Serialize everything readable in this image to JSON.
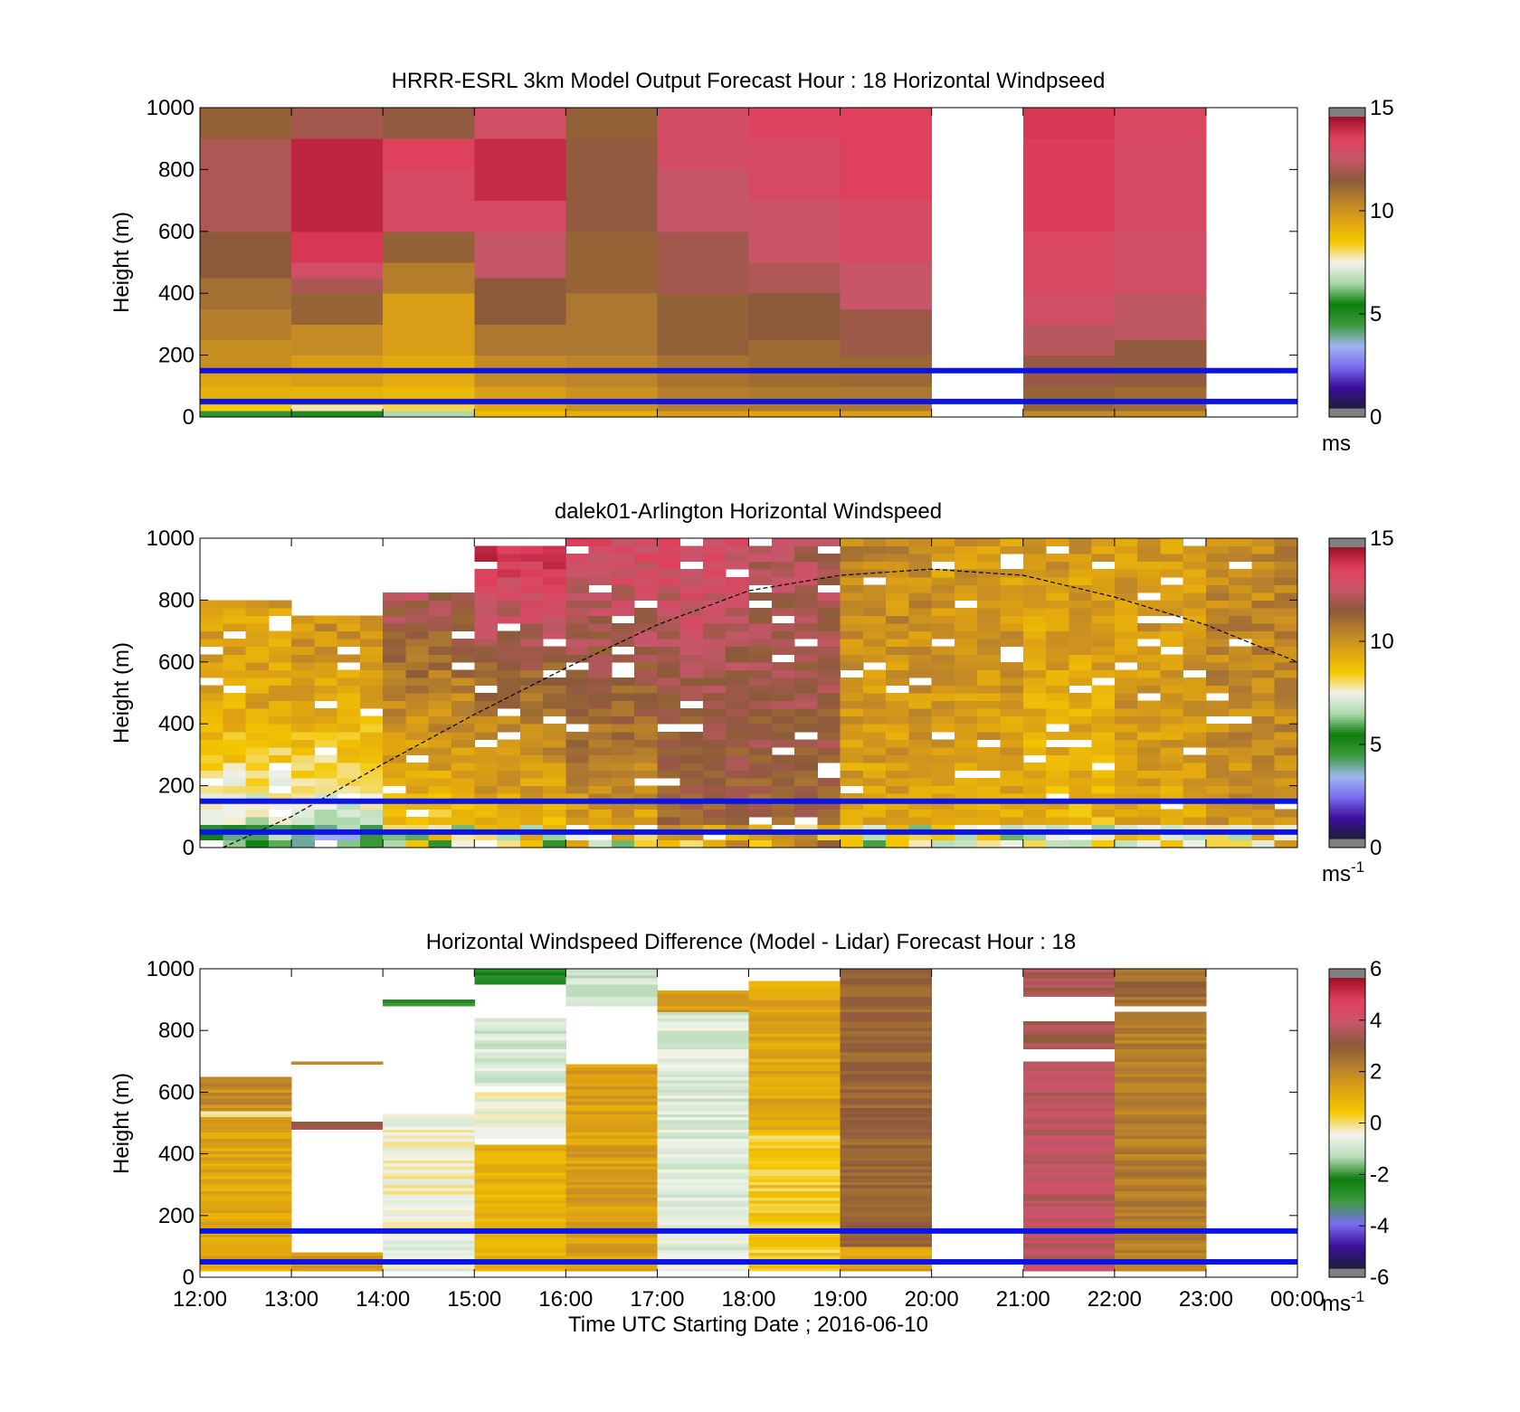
{
  "colors": {
    "speed_scale": [
      "#1f1d3a",
      "#3b0f9a",
      "#7a6cf0",
      "#9fb6ee",
      "#3d9a3d",
      "#0c7d0c",
      "#a8d8a8",
      "#f2f2ec",
      "#f5c800",
      "#e0a312",
      "#b8812c",
      "#8b5a3a",
      "#c8566a",
      "#e0405c",
      "#a01028"
    ],
    "diff_scale": [
      "#1f1d3a",
      "#3b0f9a",
      "#7a6cf0",
      "#3d9a3d",
      "#0c7d0c",
      "#b8dcb8",
      "#f4f4ee",
      "#f5c800",
      "#e0a312",
      "#b8812c",
      "#8b5a3a",
      "#c8566a",
      "#e0405c",
      "#a01028"
    ],
    "blue_line": "#0a14e6",
    "sun_curve": "#000000",
    "nodata": "#ffffff",
    "colorbar_end": "#808080"
  },
  "chart_data": [
    {
      "type": "heatmap",
      "title": "HRRR-ESRL 3km Model Output   Forecast Hour : 18 Horizontal Windpseed",
      "xlabel": "",
      "ylabel": "Height (m)",
      "xlim": [
        12,
        24
      ],
      "ylim": [
        0,
        1000
      ],
      "yticks": [
        0,
        200,
        400,
        600,
        800,
        1000
      ],
      "colorbar": {
        "min": 0,
        "max": 15,
        "ticks": [
          0,
          5,
          10,
          15
        ],
        "unit": "ms",
        "unit_sup": ""
      },
      "reference_heights_m": [
        50,
        150
      ],
      "missing_hours": [
        20,
        23
      ],
      "columns": [
        {
          "start_hour": 12,
          "levels": [
            {
              "top": 20,
              "v": 4.5
            },
            {
              "top": 40,
              "v": 8.5
            },
            {
              "top": 100,
              "v": 9.3
            },
            {
              "top": 150,
              "v": 9.6
            },
            {
              "top": 250,
              "v": 10.3
            },
            {
              "top": 350,
              "v": 10.8
            },
            {
              "top": 450,
              "v": 11.2
            },
            {
              "top": 600,
              "v": 11.8
            },
            {
              "top": 900,
              "v": 12.4
            },
            {
              "top": 1000,
              "v": 11.6
            }
          ]
        },
        {
          "start_hour": 13,
          "levels": [
            {
              "top": 20,
              "v": 5.5
            },
            {
              "top": 40,
              "v": 7.8
            },
            {
              "top": 100,
              "v": 9.2
            },
            {
              "top": 200,
              "v": 9.8
            },
            {
              "top": 300,
              "v": 10.4
            },
            {
              "top": 400,
              "v": 11.5
            },
            {
              "top": 450,
              "v": 12.3
            },
            {
              "top": 500,
              "v": 13.2
            },
            {
              "top": 600,
              "v": 14.1
            },
            {
              "top": 900,
              "v": 14.5
            },
            {
              "top": 1000,
              "v": 12.2
            }
          ]
        },
        {
          "start_hour": 14,
          "levels": [
            {
              "top": 20,
              "v": 6.5
            },
            {
              "top": 40,
              "v": 8.2
            },
            {
              "top": 100,
              "v": 9.0
            },
            {
              "top": 200,
              "v": 9.4
            },
            {
              "top": 400,
              "v": 9.8
            },
            {
              "top": 500,
              "v": 10.8
            },
            {
              "top": 600,
              "v": 11.6
            },
            {
              "top": 800,
              "v": 13.5
            },
            {
              "top": 900,
              "v": 13.9
            },
            {
              "top": 1000,
              "v": 11.9
            }
          ]
        },
        {
          "start_hour": 15,
          "levels": [
            {
              "top": 20,
              "v": 9.0
            },
            {
              "top": 40,
              "v": 9.4
            },
            {
              "top": 100,
              "v": 9.8
            },
            {
              "top": 200,
              "v": 10.4
            },
            {
              "top": 300,
              "v": 11.0
            },
            {
              "top": 450,
              "v": 11.8
            },
            {
              "top": 600,
              "v": 12.8
            },
            {
              "top": 700,
              "v": 13.5
            },
            {
              "top": 900,
              "v": 14.4
            },
            {
              "top": 1000,
              "v": 13.2
            }
          ]
        },
        {
          "start_hour": 16,
          "levels": [
            {
              "top": 20,
              "v": 9.3
            },
            {
              "top": 100,
              "v": 10.2
            },
            {
              "top": 200,
              "v": 10.6
            },
            {
              "top": 400,
              "v": 11.0
            },
            {
              "top": 600,
              "v": 11.5
            },
            {
              "top": 900,
              "v": 11.9
            },
            {
              "top": 1000,
              "v": 11.6
            }
          ]
        },
        {
          "start_hour": 17,
          "levels": [
            {
              "top": 20,
              "v": 9.8
            },
            {
              "top": 100,
              "v": 10.8
            },
            {
              "top": 200,
              "v": 11.1
            },
            {
              "top": 400,
              "v": 11.6
            },
            {
              "top": 600,
              "v": 12.2
            },
            {
              "top": 800,
              "v": 12.8
            },
            {
              "top": 1000,
              "v": 13.3
            }
          ]
        },
        {
          "start_hour": 18,
          "levels": [
            {
              "top": 20,
              "v": 9.6
            },
            {
              "top": 100,
              "v": 10.9
            },
            {
              "top": 250,
              "v": 11.3
            },
            {
              "top": 400,
              "v": 11.8
            },
            {
              "top": 500,
              "v": 12.4
            },
            {
              "top": 700,
              "v": 13.0
            },
            {
              "top": 900,
              "v": 13.5
            },
            {
              "top": 1000,
              "v": 13.8
            }
          ]
        },
        {
          "start_hour": 19,
          "levels": [
            {
              "top": 20,
              "v": 9.8
            },
            {
              "top": 100,
              "v": 11.0
            },
            {
              "top": 200,
              "v": 11.4
            },
            {
              "top": 350,
              "v": 12.1
            },
            {
              "top": 500,
              "v": 12.9
            },
            {
              "top": 700,
              "v": 13.4
            },
            {
              "top": 1000,
              "v": 13.9
            }
          ]
        },
        {
          "start_hour": 21,
          "levels": [
            {
              "top": 20,
              "v": 10.5
            },
            {
              "top": 100,
              "v": 11.5
            },
            {
              "top": 200,
              "v": 12.0
            },
            {
              "top": 300,
              "v": 12.6
            },
            {
              "top": 400,
              "v": 13.2
            },
            {
              "top": 600,
              "v": 13.6
            },
            {
              "top": 900,
              "v": 14.0
            },
            {
              "top": 1000,
              "v": 14.1
            }
          ]
        },
        {
          "start_hour": 22,
          "levels": [
            {
              "top": 20,
              "v": 10.3
            },
            {
              "top": 100,
              "v": 11.3
            },
            {
              "top": 250,
              "v": 11.9
            },
            {
              "top": 400,
              "v": 12.7
            },
            {
              "top": 600,
              "v": 13.2
            },
            {
              "top": 900,
              "v": 13.5
            },
            {
              "top": 1000,
              "v": 13.6
            }
          ]
        }
      ]
    },
    {
      "type": "heatmap",
      "title": "dalek01-Arlington  Horizontal Windspeed",
      "xlabel": "",
      "ylabel": "Height (m)",
      "xlim": [
        12,
        24
      ],
      "ylim": [
        0,
        1000
      ],
      "yticks": [
        0,
        200,
        400,
        600,
        800,
        1000
      ],
      "colorbar": {
        "min": 0,
        "max": 15,
        "ticks": [
          0,
          5,
          10,
          15
        ],
        "unit": "ms",
        "unit_sup": "-1"
      },
      "reference_heights_m": [
        50,
        150
      ],
      "profile_interval_min": 15,
      "gate_m": 25,
      "hourly_profiles": [
        {
          "hour": 12,
          "top_m": 780,
          "lower": 6.5,
          "mid": 9.5,
          "upper": 10.0
        },
        {
          "hour": 13,
          "top_m": 740,
          "lower": 6.5,
          "mid": 9.5,
          "upper": 11.0
        },
        {
          "hour": 14,
          "top_m": 820,
          "lower": 8.5,
          "mid": 10.5,
          "upper": 13.5
        },
        {
          "hour": 15,
          "top_m": 960,
          "lower": 9.0,
          "mid": 11.0,
          "upper": 14.5
        },
        {
          "hour": 16,
          "top_m": 1000,
          "lower": 9.5,
          "mid": 11.5,
          "upper": 13.5
        },
        {
          "hour": 17,
          "top_m": 1000,
          "lower": 11.5,
          "mid": 12.0,
          "upper": 13.5
        },
        {
          "hour": 18,
          "top_m": 1000,
          "lower": 11.5,
          "mid": 12.0,
          "upper": 12.5
        },
        {
          "hour": 19,
          "top_m": 1000,
          "lower": 9.5,
          "mid": 10.0,
          "upper": 10.5
        },
        {
          "hour": 20,
          "top_m": 1000,
          "lower": 9.5,
          "mid": 10.0,
          "upper": 10.0
        },
        {
          "hour": 21,
          "top_m": 1000,
          "lower": 9.0,
          "mid": 9.5,
          "upper": 10.0
        },
        {
          "hour": 22,
          "top_m": 1000,
          "lower": 9.5,
          "mid": 10.0,
          "upper": 10.0
        },
        {
          "hour": 23,
          "top_m": 1000,
          "lower": 10.0,
          "mid": 10.5,
          "upper": 10.5
        }
      ],
      "sun_curve": {
        "x": [
          12.25,
          13,
          14,
          15,
          16,
          17,
          18,
          19,
          20,
          21,
          22,
          23,
          24
        ],
        "y": [
          0,
          100,
          270,
          430,
          580,
          720,
          830,
          880,
          900,
          880,
          810,
          720,
          600
        ]
      }
    },
    {
      "type": "heatmap",
      "title": "Horizontal Windspeed Difference (Model - Lidar) Forecast Hour : 18",
      "xlabel": "Time UTC  Starting Date ; 2016-06-10",
      "ylabel": "Height (m)",
      "xlim": [
        12,
        24
      ],
      "ylim": [
        0,
        1000
      ],
      "yticks": [
        0,
        200,
        400,
        600,
        800,
        1000
      ],
      "xticks": [
        "12:00",
        "13:00",
        "14:00",
        "15:00",
        "16:00",
        "17:00",
        "18:00",
        "19:00",
        "20:00",
        "21:00",
        "22:00",
        "23:00",
        "00:00"
      ],
      "colorbar": {
        "min": -6,
        "max": 6,
        "ticks": [
          -6,
          -4,
          -2,
          0,
          2,
          4,
          6
        ],
        "unit": "ms",
        "unit_sup": "-1"
      },
      "reference_heights_m": [
        50,
        150
      ],
      "columns": [
        {
          "start_hour": 12,
          "segments": [
            {
              "from": 20,
              "to": 520,
              "v": 1.3
            },
            {
              "from": 520,
              "to": 540,
              "v": 0.0
            },
            {
              "from": 540,
              "to": 650,
              "v": 2.0
            }
          ]
        },
        {
          "start_hour": 13,
          "segments": [
            {
              "from": 20,
              "to": 80,
              "v": 1.5
            },
            {
              "from": 480,
              "to": 505,
              "v": 3.4
            },
            {
              "from": 690,
              "to": 700,
              "v": 2.5
            }
          ]
        },
        {
          "start_hour": 14,
          "segments": [
            {
              "from": 20,
              "to": 260,
              "v": -0.6
            },
            {
              "from": 260,
              "to": 530,
              "v": -0.4
            },
            {
              "from": 880,
              "to": 900,
              "v": -3.0
            }
          ]
        },
        {
          "start_hour": 15,
          "segments": [
            {
              "from": 20,
              "to": 430,
              "v": 1.0
            },
            {
              "from": 450,
              "to": 600,
              "v": -0.5
            },
            {
              "from": 620,
              "to": 840,
              "v": -1.0
            },
            {
              "from": 950,
              "to": 1000,
              "v": -2.5
            }
          ]
        },
        {
          "start_hour": 16,
          "segments": [
            {
              "from": 20,
              "to": 690,
              "v": 1.5
            },
            {
              "from": 880,
              "to": 1000,
              "v": -1.0
            }
          ]
        },
        {
          "start_hour": 17,
          "segments": [
            {
              "from": 20,
              "to": 860,
              "v": -0.8
            },
            {
              "from": 860,
              "to": 930,
              "v": 1.5
            }
          ]
        },
        {
          "start_hour": 18,
          "segments": [
            {
              "from": 20,
              "to": 480,
              "v": 0.4
            },
            {
              "from": 480,
              "to": 960,
              "v": 1.3
            }
          ]
        },
        {
          "start_hour": 19,
          "segments": [
            {
              "from": 20,
              "to": 100,
              "v": 1.4
            },
            {
              "from": 100,
              "to": 1000,
              "v": 3.0
            }
          ]
        },
        {
          "start_hour": 21,
          "segments": [
            {
              "from": 20,
              "to": 700,
              "v": 4.0
            },
            {
              "from": 740,
              "to": 830,
              "v": 3.6
            },
            {
              "from": 910,
              "to": 1000,
              "v": 3.8
            }
          ]
        },
        {
          "start_hour": 22,
          "segments": [
            {
              "from": 20,
              "to": 860,
              "v": 2.4
            },
            {
              "from": 880,
              "to": 1000,
              "v": 2.9
            }
          ]
        }
      ]
    }
  ]
}
